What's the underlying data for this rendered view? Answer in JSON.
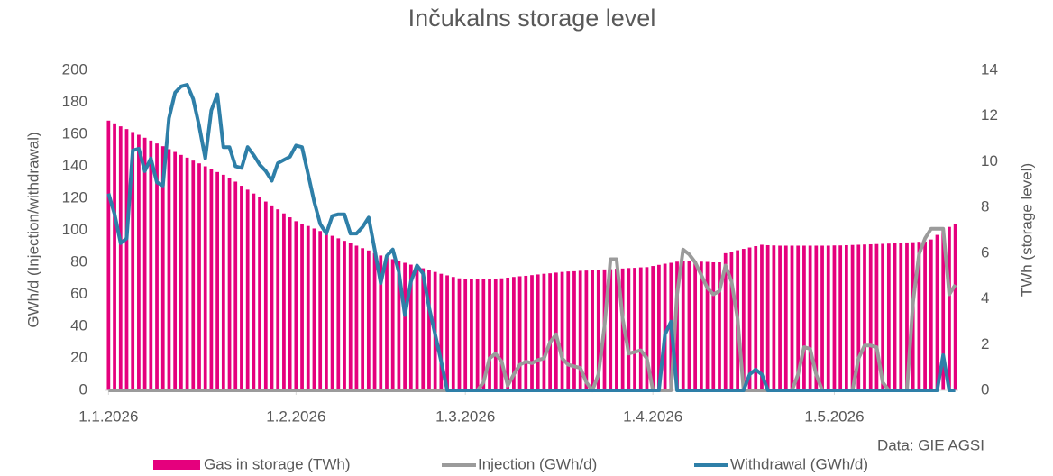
{
  "chart_data": {
    "type": "combo",
    "title": "Inčukalns storage level",
    "ylabel": "GWh/d (Injection/withdrawal)",
    "y2label": "TWh (storage level)",
    "source": "Data: GIE AGSI",
    "categories": [
      "1.1.2026",
      null,
      null,
      null,
      null,
      null,
      null,
      null,
      null,
      null,
      null,
      null,
      null,
      null,
      null,
      null,
      null,
      null,
      null,
      null,
      null,
      null,
      null,
      null,
      null,
      null,
      null,
      null,
      null,
      null,
      null,
      "1.2.2026",
      null,
      null,
      null,
      null,
      null,
      null,
      null,
      null,
      null,
      null,
      null,
      null,
      null,
      null,
      null,
      null,
      null,
      null,
      null,
      null,
      null,
      null,
      null,
      null,
      null,
      null,
      null,
      "1.3.2026",
      null,
      null,
      null,
      null,
      null,
      null,
      null,
      null,
      null,
      null,
      null,
      null,
      null,
      null,
      null,
      null,
      null,
      null,
      null,
      null,
      null,
      null,
      null,
      null,
      null,
      null,
      null,
      null,
      null,
      null,
      "1.4.2026",
      null,
      null,
      null,
      null,
      null,
      null,
      null,
      null,
      null,
      null,
      null,
      null,
      null,
      null,
      null,
      null,
      null,
      null,
      null,
      null,
      null,
      null,
      null,
      null,
      null,
      null,
      null,
      null,
      null,
      "1.5.2026",
      null,
      null,
      null,
      null,
      null,
      null,
      null,
      null,
      null,
      null,
      null,
      null,
      null,
      null,
      null,
      null,
      null,
      null,
      null,
      null
    ],
    "ylim": [
      0,
      200
    ],
    "yticks": [
      0,
      20,
      40,
      60,
      80,
      100,
      120,
      140,
      160,
      180,
      200
    ],
    "y2lim": [
      0,
      14
    ],
    "y2ticks": [
      0,
      2,
      4,
      6,
      8,
      10,
      12,
      14
    ],
    "grid": false,
    "legend": "bottom",
    "series": [
      {
        "name": "Gas in storage (TWh)",
        "type": "bar",
        "axis": "y2",
        "color": "#e5007d",
        "values": [
          11.8,
          11.68,
          11.55,
          11.43,
          11.3,
          11.18,
          11.05,
          10.93,
          10.8,
          10.68,
          10.55,
          10.43,
          10.3,
          10.18,
          10.05,
          9.93,
          9.8,
          9.68,
          9.55,
          9.43,
          9.3,
          9.13,
          8.95,
          8.78,
          8.61,
          8.44,
          8.26,
          8.09,
          7.92,
          7.74,
          7.57,
          7.4,
          7.29,
          7.19,
          7.08,
          6.97,
          6.87,
          6.76,
          6.65,
          6.54,
          6.44,
          6.33,
          6.22,
          6.12,
          6.01,
          5.9,
          5.82,
          5.74,
          5.66,
          5.58,
          5.5,
          5.42,
          5.34,
          5.26,
          5.18,
          5.1,
          5.03,
          4.96,
          4.9,
          4.88,
          4.87,
          4.87,
          4.87,
          4.88,
          4.89,
          4.9,
          4.93,
          4.96,
          4.99,
          5.01,
          5.04,
          5.07,
          5.1,
          5.12,
          5.15,
          5.18,
          5.2,
          5.21,
          5.23,
          5.24,
          5.26,
          5.27,
          5.29,
          5.3,
          5.32,
          5.33,
          5.35,
          5.36,
          5.38,
          5.39,
          5.44,
          5.49,
          5.54,
          5.58,
          5.63,
          5.67,
          5.66,
          5.64,
          5.63,
          5.62,
          5.6,
          5.6,
          6.0,
          6.06,
          6.13,
          6.19,
          6.25,
          6.31,
          6.37,
          6.35,
          6.34,
          6.33,
          6.33,
          6.33,
          6.33,
          6.33,
          6.33,
          6.33,
          6.33,
          6.33,
          6.34,
          6.34,
          6.35,
          6.36,
          6.37,
          6.38,
          6.39,
          6.4,
          6.41,
          6.42,
          6.44,
          6.46,
          6.47,
          6.48,
          6.5,
          6.51,
          6.6,
          6.8,
          7.0,
          7.15,
          7.28
        ]
      },
      {
        "name": "Injection (GWh/d)",
        "type": "line",
        "axis": "y",
        "color": "#9b9b9b",
        "values": [
          0,
          0,
          0,
          0,
          0,
          0,
          0,
          0,
          0,
          0,
          0,
          0,
          0,
          0,
          0,
          0,
          0,
          0,
          0,
          0,
          0,
          0,
          0,
          0,
          0,
          0,
          0,
          0,
          0,
          0,
          0,
          0,
          0,
          0,
          0,
          0,
          0,
          0,
          0,
          0,
          0,
          0,
          0,
          0,
          0,
          0,
          0,
          0,
          0,
          0,
          0,
          0,
          0,
          0,
          0,
          0,
          0,
          0,
          0,
          0,
          0,
          0,
          5,
          20,
          23,
          18,
          3,
          10,
          16,
          18,
          17,
          19,
          20,
          30,
          35,
          20,
          16,
          15,
          14,
          5,
          0,
          10,
          40,
          82,
          82,
          45,
          23,
          24,
          25,
          20,
          0,
          0,
          0,
          0,
          60,
          88,
          85,
          80,
          72,
          64,
          60,
          62,
          78,
          68,
          45,
          0,
          0,
          0,
          0,
          0,
          0,
          0,
          0,
          0,
          10,
          27,
          26,
          10,
          0,
          0,
          0,
          0,
          0,
          0,
          20,
          28,
          28,
          27,
          5,
          0,
          0,
          0,
          0,
          55,
          85,
          95,
          101,
          101,
          101,
          60,
          66
        ]
      },
      {
        "name": "Withdrawal (GWh/d)",
        "type": "line",
        "axis": "y",
        "color": "#2e7fa8",
        "values": [
          123,
          110,
          92,
          95,
          150,
          151,
          137,
          145,
          130,
          128,
          170,
          186,
          190,
          191,
          182,
          165,
          145,
          175,
          185,
          152,
          152,
          140,
          139,
          152,
          147,
          141,
          137,
          131,
          142,
          144,
          146,
          153,
          152,
          135,
          118,
          104,
          98,
          109,
          110,
          110,
          98,
          98,
          102,
          108,
          88,
          67,
          84,
          88,
          74,
          47,
          68,
          78,
          73,
          52,
          35,
          18,
          0,
          0,
          0,
          0,
          0,
          0,
          0,
          0,
          0,
          0,
          0,
          0,
          0,
          0,
          0,
          0,
          0,
          0,
          0,
          0,
          0,
          0,
          0,
          0,
          0,
          0,
          0,
          0,
          0,
          0,
          0,
          0,
          0,
          0,
          0,
          0,
          35,
          43,
          0,
          0,
          0,
          0,
          0,
          0,
          0,
          0,
          0,
          0,
          0,
          0,
          10,
          13,
          10,
          0,
          0,
          0,
          0,
          0,
          0,
          0,
          0,
          0,
          0,
          0,
          0,
          0,
          0,
          0,
          0,
          0,
          0,
          0,
          0,
          0,
          0,
          0,
          0,
          0,
          0,
          0,
          0,
          0,
          22,
          0,
          0
        ]
      }
    ]
  }
}
